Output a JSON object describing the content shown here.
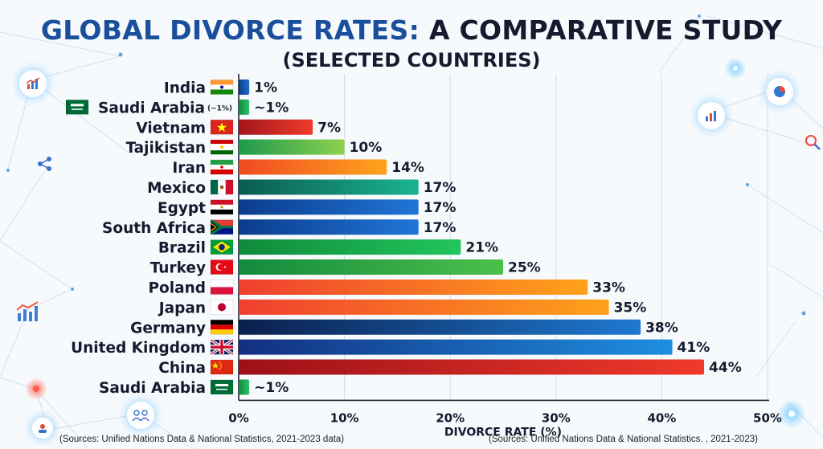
{
  "title_part1": "GLOBAL DIVORCE RATES:",
  "title_part2": "A COMPARATIVE STUDY",
  "subtitle": "(SELECTED COUNTRIES)",
  "source_left": "(Sources: Unified Nations Data & National Statistics, 2021-2023 data)",
  "source_right": "(Sources: Unified Nations Data & National Statistics. , 2021-2023)",
  "icons": [
    "bar-chart-icon",
    "share-icon",
    "trend-chart-icon",
    "people-icon",
    "pie-chart-icon",
    "bar-chart-icon",
    "magnifier-icon"
  ],
  "chart_data": {
    "type": "bar",
    "orientation": "horizontal",
    "categories": [
      "India",
      "Saudi Arabia",
      "Vietnam",
      "Tajikistan",
      "Iran",
      "Mexico",
      "Egypt",
      "South Africa",
      "Brazil",
      "Turkey",
      "Poland",
      "Japan",
      "Germany",
      "United Kingdom",
      "China",
      "Saudi Arabia"
    ],
    "values": [
      1,
      1,
      7,
      10,
      14,
      17,
      17,
      17,
      21,
      25,
      33,
      35,
      38,
      41,
      44,
      1
    ],
    "value_labels": [
      "1%",
      "~1%",
      "7%",
      "10%",
      "14%",
      "17%",
      "17%",
      "17%",
      "21%",
      "25%",
      "33%",
      "35%",
      "38%",
      "41%",
      "44%",
      "~1%"
    ],
    "category_notes": [
      "",
      "(~1%)",
      "",
      "",
      "",
      "",
      "",
      "",
      "",
      "",
      "",
      "",
      "",
      "",
      "",
      ""
    ],
    "flags": [
      "india",
      "saudi",
      "vietnam",
      "tajikistan",
      "iran",
      "mexico",
      "egypt",
      "southafrica",
      "brazil",
      "turkey",
      "poland",
      "japan",
      "germany",
      "uk",
      "china",
      "saudi"
    ],
    "bar_colors": [
      [
        "#0d3d8a",
        "#1e6fd0"
      ],
      [
        "#138a3e",
        "#2ec26a"
      ],
      [
        "#a3161c",
        "#ef3b2c"
      ],
      [
        "#1d9a4a",
        "#8fd14f"
      ],
      [
        "#f04a23",
        "#ffa41b"
      ],
      [
        "#0b5b50",
        "#1ab392"
      ],
      [
        "#0b3c8c",
        "#2075d8"
      ],
      [
        "#0b3c8c",
        "#2075d8"
      ],
      [
        "#0f8a3a",
        "#22c55e"
      ],
      [
        "#138a3e",
        "#4cc04a"
      ],
      [
        "#ef3f2f",
        "#ffa21a"
      ],
      [
        "#ef3f2f",
        "#ffa21a"
      ],
      [
        "#0a1f4d",
        "#1f78d1"
      ],
      [
        "#132f80",
        "#1e8ee0"
      ],
      [
        "#9c1018",
        "#f0392b"
      ],
      [
        "#138a3e",
        "#2ec26a"
      ]
    ],
    "xlabel": "DIVORCE RATE (%)",
    "xlim": [
      0,
      50
    ],
    "xticks": [
      0,
      10,
      20,
      30,
      40,
      50
    ],
    "xtick_labels": [
      "0%",
      "10%",
      "20%",
      "30%",
      "40%",
      "50%"
    ],
    "grid": true
  }
}
